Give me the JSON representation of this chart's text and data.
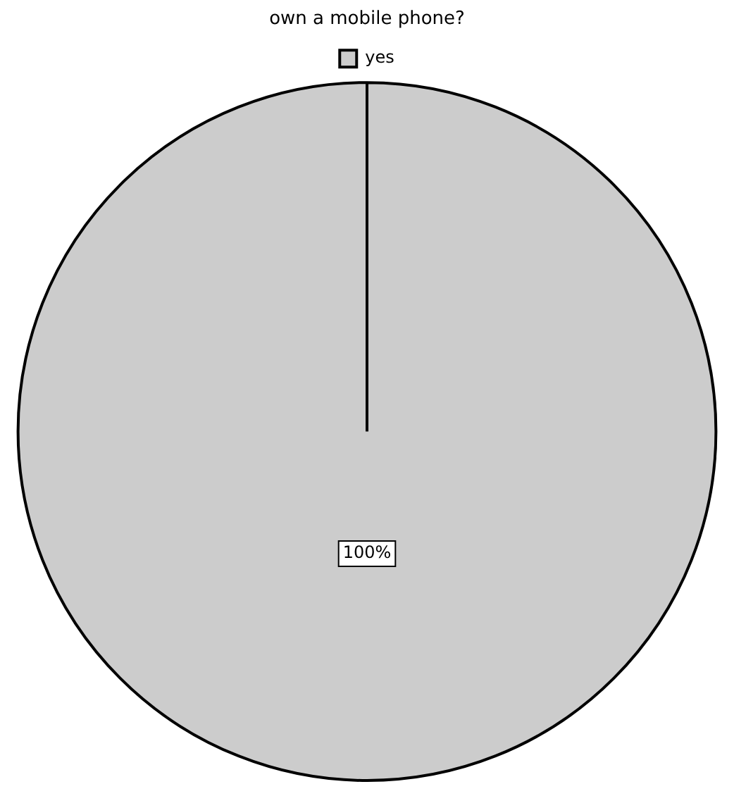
{
  "chart_data": {
    "type": "pie",
    "title": "own a mobile phone?",
    "categories": [
      "yes"
    ],
    "values": [
      100
    ],
    "colors": [
      "#cccccc"
    ],
    "legend": "top",
    "value_labels": [
      "100%"
    ]
  }
}
